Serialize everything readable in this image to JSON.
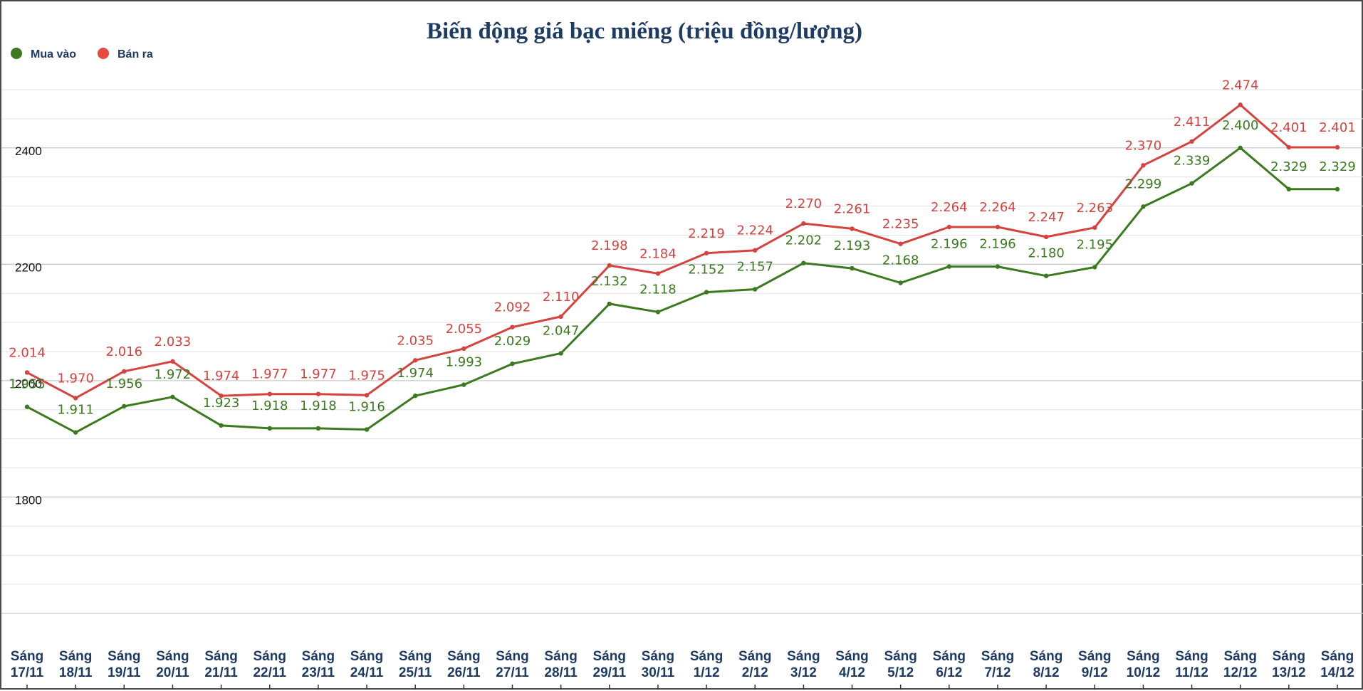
{
  "chart_data": {
    "type": "line",
    "title": "Biến động giá bạc miếng (triệu đồng/lượng)",
    "xlabel": "",
    "ylabel": "",
    "ylim": [
      1600,
      2500
    ],
    "yticks": [
      "1800",
      "2000",
      "2200",
      "2400"
    ],
    "grid": true,
    "legend_position": "top-left",
    "categories": [
      [
        "Sáng",
        "17/11"
      ],
      [
        "Sáng",
        "18/11"
      ],
      [
        "Sáng",
        "19/11"
      ],
      [
        "Sáng",
        "20/11"
      ],
      [
        "Sáng",
        "21/11"
      ],
      [
        "Sáng",
        "22/11"
      ],
      [
        "Sáng",
        "23/11"
      ],
      [
        "Sáng",
        "24/11"
      ],
      [
        "Sáng",
        "25/11"
      ],
      [
        "Sáng",
        "26/11"
      ],
      [
        "Sáng",
        "27/11"
      ],
      [
        "Sáng",
        "28/11"
      ],
      [
        "Sáng",
        "29/11"
      ],
      [
        "Sáng",
        "30/11"
      ],
      [
        "Sáng",
        "1/12"
      ],
      [
        "Sáng",
        "2/12"
      ],
      [
        "Sáng",
        "3/12"
      ],
      [
        "Sáng",
        "4/12"
      ],
      [
        "Sáng",
        "5/12"
      ],
      [
        "Sáng",
        "6/12"
      ],
      [
        "Sáng",
        "7/12"
      ],
      [
        "Sáng",
        "8/12"
      ],
      [
        "Sáng",
        "9/12"
      ],
      [
        "Sáng",
        "10/12"
      ],
      [
        "Sáng",
        "11/12"
      ],
      [
        "Sáng",
        "12/12"
      ],
      [
        "Sáng",
        "13/12"
      ],
      [
        "Sáng",
        "14/12"
      ]
    ],
    "series": [
      {
        "name": "Mua vào",
        "color": "#3b7a1f",
        "values": [
          1955,
          1911,
          1956,
          1972,
          1923,
          1918,
          1918,
          1916,
          1974,
          1993,
          2029,
          2047,
          2132,
          2118,
          2152,
          2157,
          2202,
          2193,
          2168,
          2196,
          2196,
          2180,
          2195,
          2299,
          2339,
          2400,
          2329,
          2329
        ],
        "labels": [
          "1.955",
          "1.911",
          "1.956",
          "1.972",
          "1.923",
          "1.918",
          "1.918",
          "1.916",
          "1.974",
          "1.993",
          "2.029",
          "2.047",
          "2.132",
          "2.118",
          "2.152",
          "2.157",
          "2.202",
          "2.193",
          "2.168",
          "2.196",
          "2.196",
          "2.180",
          "2.195",
          "2.299",
          "2.339",
          "2.400",
          "2.329",
          "2.329"
        ]
      },
      {
        "name": "Bán ra",
        "color": "#d5433f",
        "values": [
          2014,
          1970,
          2016,
          2033,
          1974,
          1977,
          1977,
          1975,
          2035,
          2055,
          2092,
          2110,
          2198,
          2184,
          2219,
          2224,
          2270,
          2261,
          2235,
          2264,
          2264,
          2247,
          2263,
          2370,
          2411,
          2474,
          2401,
          2401
        ],
        "labels": [
          "2.014",
          "1.970",
          "2.016",
          "2.033",
          "1.974",
          "1.977",
          "1.977",
          "1.975",
          "2.035",
          "2.055",
          "2.092",
          "2.110",
          "2.198",
          "2.184",
          "2.219",
          "2.224",
          "2.270",
          "2.261",
          "2.235",
          "2.264",
          "2.264",
          "2.247",
          "2.263",
          "2.370",
          "2.411",
          "2.474",
          "2.401",
          "2.401"
        ]
      }
    ]
  }
}
